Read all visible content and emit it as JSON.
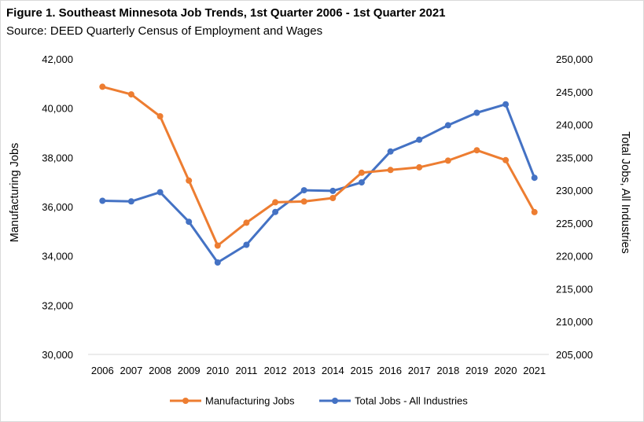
{
  "header": {
    "title": "Figure 1. Southeast Minnesota Job Trends, 1st Quarter 2006 - 1st Quarter 2021",
    "source": "Source: DEED Quarterly Census of Employment and Wages"
  },
  "chart_data": {
    "type": "line",
    "title": "Figure 1. Southeast Minnesota Job Trends, 1st Quarter 2006 - 1st Quarter 2021",
    "subtitle": "Source: DEED Quarterly Census of Employment and Wages",
    "x": [
      "2006",
      "2007",
      "2008",
      "2009",
      "2010",
      "2011",
      "2012",
      "2013",
      "2014",
      "2015",
      "2016",
      "2017",
      "2018",
      "2019",
      "2020",
      "2021"
    ],
    "ylabel": "Manufacturing Jobs",
    "y2label": "Total Jobs, All Industries",
    "ylim": [
      30000,
      42000
    ],
    "y2lim": [
      205000,
      250000
    ],
    "yticks": [
      "30,000",
      "32,000",
      "34,000",
      "36,000",
      "38,000",
      "40,000",
      "42,000"
    ],
    "y2ticks": [
      "205,000",
      "210,000",
      "215,000",
      "220,000",
      "225,000",
      "230,000",
      "235,000",
      "240,000",
      "245,000",
      "250,000"
    ],
    "grid": false,
    "legend_position": "bottom",
    "series": [
      {
        "name": "Manufacturing Jobs",
        "axis": "left",
        "color": "#ED7D31",
        "values": [
          40870,
          40560,
          39670,
          37060,
          34420,
          35350,
          36180,
          36210,
          36350,
          37380,
          37490,
          37600,
          37870,
          38290,
          37890,
          35780
        ]
      },
      {
        "name": "Total Jobs - All Industries",
        "axis": "right",
        "color": "#4472C4",
        "values": [
          228400,
          228300,
          229700,
          225200,
          219000,
          221700,
          226700,
          230000,
          229900,
          231200,
          235900,
          237700,
          239900,
          241800,
          243100,
          231900
        ]
      }
    ]
  }
}
